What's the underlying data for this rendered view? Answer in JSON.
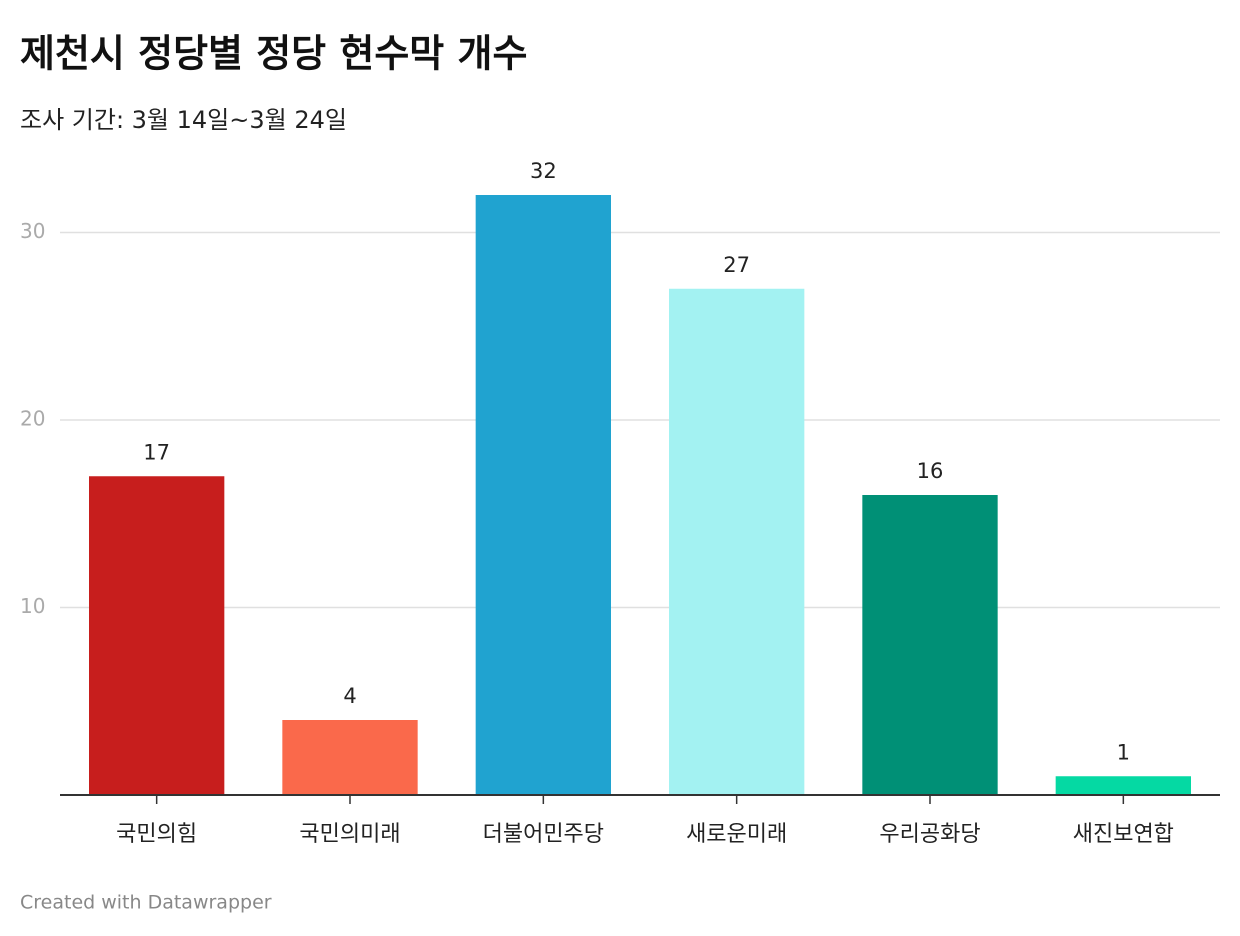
{
  "chart_data": {
    "type": "bar",
    "title": "제천시 정당별 정당 현수막 개수",
    "subtitle": "조사 기간: 3월 14일~3월 24일",
    "credit": "Created with Datawrapper",
    "categories": [
      "국민의힘",
      "국민의미래",
      "더불어민주당",
      "새로운미래",
      "우리공화당",
      "새진보연합"
    ],
    "values": [
      17,
      4,
      32,
      27,
      16,
      1
    ],
    "colors": [
      "#c71e1d",
      "#fa694b",
      "#20a3d0",
      "#a3f2f2",
      "#009076",
      "#05d9a3"
    ],
    "ylim": [
      0,
      32
    ],
    "yticks": [
      10,
      20,
      30
    ],
    "grid": true
  }
}
